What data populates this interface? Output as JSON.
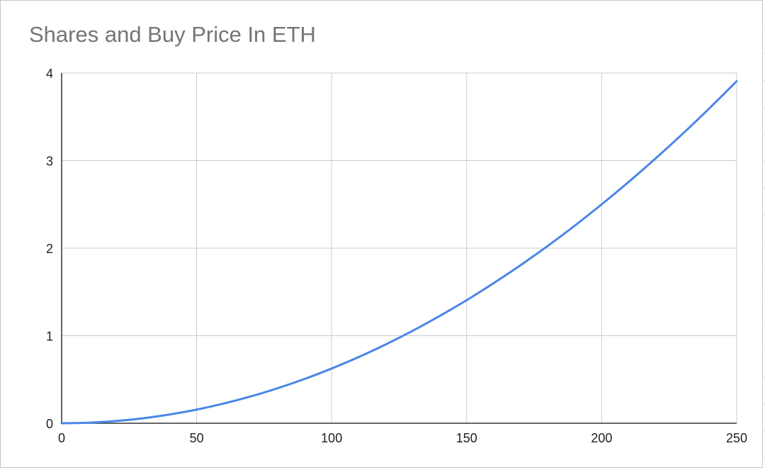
{
  "chart_data": {
    "type": "line",
    "title": "Shares and Buy Price In ETH",
    "xlabel": "",
    "ylabel": "",
    "xlim": [
      0,
      250
    ],
    "ylim": [
      0,
      4
    ],
    "x_ticks": [
      "0",
      "50",
      "100",
      "150",
      "200",
      "250"
    ],
    "y_ticks": [
      "0",
      "1",
      "2",
      "3",
      "4"
    ],
    "grid": true,
    "legend": "none",
    "series": [
      {
        "color": "#4a86e8",
        "x": [
          0,
          10,
          20,
          30,
          40,
          50,
          60,
          70,
          80,
          90,
          100,
          110,
          120,
          130,
          140,
          150,
          160,
          170,
          180,
          190,
          200,
          210,
          220,
          230,
          240,
          250
        ],
        "y": [
          0,
          0.006,
          0.025,
          0.056,
          0.1,
          0.156,
          0.225,
          0.306,
          0.4,
          0.506,
          0.625,
          0.756,
          0.9,
          1.056,
          1.225,
          1.406,
          1.6,
          1.806,
          2.025,
          2.256,
          2.5,
          2.756,
          3.025,
          3.306,
          3.6,
          3.906
        ]
      }
    ]
  }
}
